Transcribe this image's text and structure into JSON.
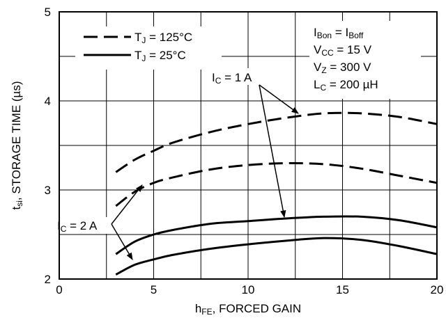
{
  "chart_data": {
    "type": "line",
    "x_axis": {
      "label_main": "h",
      "label_sub": "FE",
      "label_rest": ", FORCED GAIN",
      "range": [
        0,
        20
      ],
      "ticks": [
        0,
        5,
        10,
        15,
        20
      ],
      "tick_labels": [
        "0",
        "5",
        "10",
        "15",
        "20"
      ]
    },
    "y_axis": {
      "label_main": "t",
      "label_sub": "si",
      "label_rest": ", STORAGE TIME (µs)",
      "range": [
        2,
        5
      ],
      "ticks": [
        2,
        3,
        4,
        5
      ],
      "tick_labels": [
        "2",
        "3",
        "4",
        "5"
      ]
    },
    "grid": true,
    "legend": {
      "placement": "top-left",
      "entries": [
        {
          "style": "dashed",
          "prefix": "T",
          "sub": "J",
          "text": " = 125°C"
        },
        {
          "style": "solid",
          "prefix": "T",
          "sub": "J",
          "text": " = 25°C"
        }
      ]
    },
    "conditions": [
      {
        "parts": [
          [
            "I",
            ""
          ],
          [
            "Bon",
            "sub"
          ],
          [
            " = I",
            ""
          ],
          [
            "Boff",
            "sub"
          ]
        ]
      },
      {
        "parts": [
          [
            "V",
            ""
          ],
          [
            "CC",
            "sub"
          ],
          [
            " = 15 V",
            ""
          ]
        ]
      },
      {
        "parts": [
          [
            "V",
            ""
          ],
          [
            "Z",
            "sub"
          ],
          [
            " = 300 V",
            ""
          ]
        ]
      },
      {
        "parts": [
          [
            "L",
            ""
          ],
          [
            "C",
            "sub"
          ],
          [
            " = 200 µH",
            ""
          ]
        ]
      }
    ],
    "annotations": [
      {
        "parts": [
          [
            "I",
            ""
          ],
          [
            "C",
            "sub"
          ],
          [
            " = 1 A",
            ""
          ]
        ]
      },
      {
        "parts": [
          [
            "I",
            ""
          ],
          [
            "C",
            "sub"
          ],
          [
            " = 2 A",
            ""
          ]
        ]
      }
    ],
    "series": [
      {
        "style": "dashed",
        "ic": "1 A",
        "x": [
          3,
          4,
          5,
          6,
          8,
          10,
          12,
          14,
          16,
          18,
          20
        ],
        "y": [
          3.2,
          3.34,
          3.44,
          3.53,
          3.65,
          3.74,
          3.81,
          3.86,
          3.86,
          3.82,
          3.74
        ]
      },
      {
        "style": "dashed",
        "ic": "2 A",
        "x": [
          3,
          4,
          5,
          6,
          8,
          10,
          12,
          14,
          16,
          18,
          20
        ],
        "y": [
          2.82,
          2.98,
          3.08,
          3.14,
          3.23,
          3.28,
          3.3,
          3.29,
          3.24,
          3.16,
          3.08
        ]
      },
      {
        "style": "solid",
        "ic": "1 A",
        "x": [
          3,
          4,
          5,
          6,
          8,
          10,
          12,
          14,
          16,
          18,
          20
        ],
        "y": [
          2.28,
          2.42,
          2.5,
          2.55,
          2.62,
          2.65,
          2.68,
          2.7,
          2.7,
          2.66,
          2.58
        ]
      },
      {
        "style": "solid",
        "ic": "2 A",
        "x": [
          3,
          4,
          5,
          6,
          8,
          10,
          12,
          14,
          16,
          18,
          20
        ],
        "y": [
          2.05,
          2.16,
          2.22,
          2.27,
          2.34,
          2.39,
          2.43,
          2.46,
          2.44,
          2.37,
          2.28
        ]
      }
    ]
  }
}
